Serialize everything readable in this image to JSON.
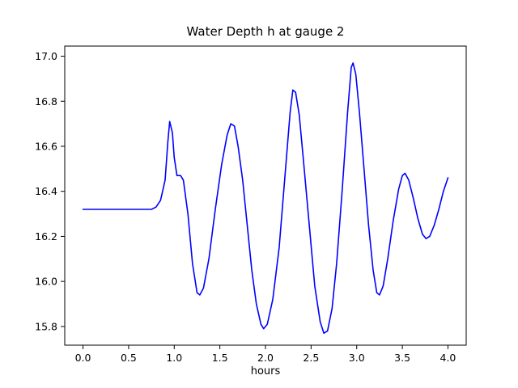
{
  "figure": {
    "title": "Water Depth h at gauge 2",
    "xlabel": "hours"
  },
  "chart_data": {
    "type": "line",
    "title": "Water Depth h at gauge 2",
    "xlabel": "hours",
    "ylabel": "",
    "xlim": [
      -0.2,
      4.2
    ],
    "ylim": [
      15.717,
      17.045
    ],
    "x_ticks": [
      0.0,
      0.5,
      1.0,
      1.5,
      2.0,
      2.5,
      3.0,
      3.5,
      4.0
    ],
    "x_tick_labels": [
      "0.0",
      "0.5",
      "1.0",
      "1.5",
      "2.0",
      "2.5",
      "3.0",
      "3.5",
      "4.0"
    ],
    "y_ticks": [
      15.8,
      16.0,
      16.2,
      16.4,
      16.6,
      16.8,
      17.0
    ],
    "y_tick_labels": [
      "15.8",
      "16.0",
      "16.2",
      "16.4",
      "16.6",
      "16.8",
      "17.0"
    ],
    "grid": false,
    "legend": null,
    "line_color": "#0000ff",
    "line_width": 1.6,
    "series": [
      {
        "name": "h at gauge 2",
        "x": [
          0.0,
          0.1,
          0.2,
          0.3,
          0.4,
          0.5,
          0.6,
          0.7,
          0.75,
          0.8,
          0.85,
          0.9,
          0.93,
          0.95,
          0.98,
          1.0,
          1.03,
          1.07,
          1.1,
          1.15,
          1.2,
          1.25,
          1.28,
          1.32,
          1.38,
          1.45,
          1.52,
          1.58,
          1.62,
          1.66,
          1.7,
          1.75,
          1.8,
          1.85,
          1.9,
          1.95,
          1.98,
          2.02,
          2.08,
          2.15,
          2.22,
          2.27,
          2.3,
          2.33,
          2.37,
          2.42,
          2.48,
          2.54,
          2.6,
          2.64,
          2.68,
          2.73,
          2.78,
          2.84,
          2.9,
          2.94,
          2.96,
          2.99,
          3.03,
          3.08,
          3.13,
          3.18,
          3.22,
          3.25,
          3.29,
          3.34,
          3.4,
          3.46,
          3.5,
          3.53,
          3.57,
          3.62,
          3.67,
          3.72,
          3.76,
          3.8,
          3.85,
          3.9,
          3.95,
          4.0
        ],
        "y": [
          16.32,
          16.32,
          16.32,
          16.32,
          16.32,
          16.32,
          16.32,
          16.32,
          16.32,
          16.33,
          16.36,
          16.45,
          16.62,
          16.71,
          16.66,
          16.55,
          16.47,
          16.47,
          16.45,
          16.3,
          16.08,
          15.95,
          15.94,
          15.97,
          16.1,
          16.32,
          16.52,
          16.65,
          16.7,
          16.69,
          16.6,
          16.45,
          16.25,
          16.05,
          15.9,
          15.81,
          15.79,
          15.81,
          15.92,
          16.15,
          16.5,
          16.75,
          16.85,
          16.84,
          16.74,
          16.52,
          16.25,
          15.98,
          15.82,
          15.77,
          15.78,
          15.88,
          16.08,
          16.4,
          16.75,
          16.95,
          16.97,
          16.92,
          16.75,
          16.5,
          16.25,
          16.05,
          15.95,
          15.94,
          15.98,
          16.1,
          16.27,
          16.41,
          16.47,
          16.48,
          16.45,
          16.37,
          16.28,
          16.21,
          16.19,
          16.2,
          16.25,
          16.32,
          16.4,
          16.46
        ]
      }
    ]
  }
}
